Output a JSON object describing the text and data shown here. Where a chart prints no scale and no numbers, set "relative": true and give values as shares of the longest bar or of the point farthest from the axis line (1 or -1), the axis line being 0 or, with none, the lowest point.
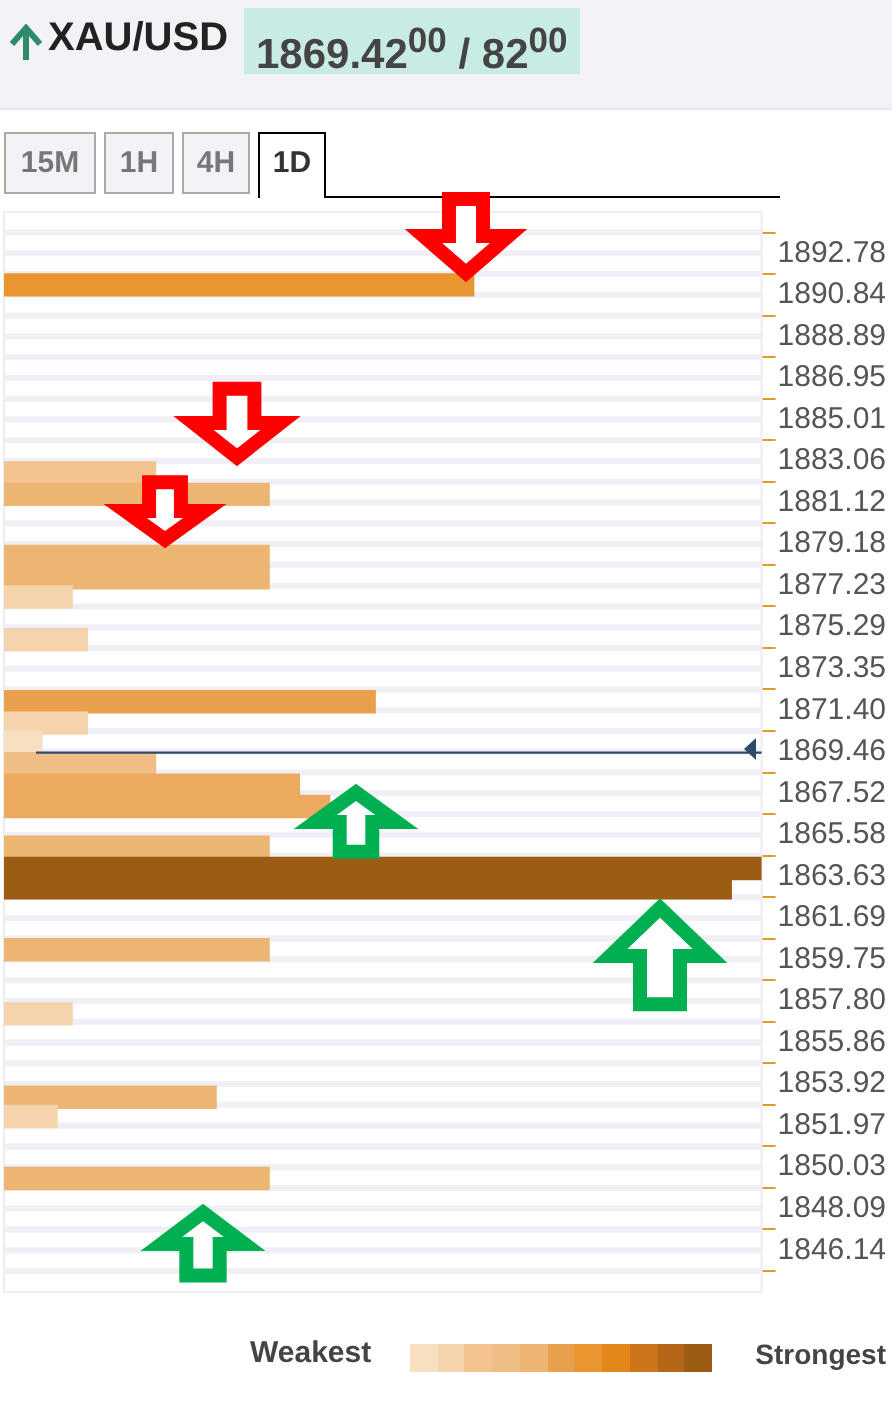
{
  "chart_data": {
    "type": "bar",
    "orientation": "horizontal",
    "relative": true,
    "title": "XAU/USD",
    "subtitle": "1869.42$^{00}$ / 82$^{00}$",
    "annotations": [
      "15M",
      "1H",
      "4H",
      "1D",
      "Weakest",
      "Strongest"
    ],
    "x": [
      1891.3,
      1882.5,
      1881.5,
      1878.6,
      1877.6,
      1876.7,
      1874.7,
      1871.8,
      1870.8,
      1869.9,
      1868.9,
      1867.9,
      1866.9,
      1865.0,
      1864.0,
      1863.1,
      1860.2,
      1857.2,
      1853.3,
      1852.4,
      1849.5
    ],
    "values": [
      0.62,
      0.2,
      0.35,
      0.35,
      0.35,
      0.09,
      0.11,
      0.49,
      0.11,
      0.05,
      0.2,
      0.39,
      0.43,
      0.35,
      1,
      0.96,
      0.35,
      0.09,
      0.28,
      0.07,
      0.35
    ],
    "colors": [
      "#e8962f",
      "#f2c38f",
      "#edb572",
      "#edb572",
      "#edb572",
      "#f5d3ad",
      "#f5d3ad",
      "#e9a04c",
      "#f5d3ad",
      "#f8dfc2",
      "#f0bd84",
      "#ebaa5f",
      "#ebaa5f",
      "#edb572",
      "#9c5c14",
      "#9c5c14",
      "#edb572",
      "#f5d3ad",
      "#edb572",
      "#f5d3ad",
      "#edb572"
    ],
    "ylim": [
      1845.2,
      1893.7
    ],
    "yticks": [
      1892.78,
      1890.84,
      1888.89,
      1886.95,
      1885.01,
      1883.06,
      1881.12,
      1879.18,
      1877.23,
      1875.29,
      1873.35,
      {
        "value": 1871.4,
        "label": "1871.40"
      },
      1869.46,
      1867.52,
      1865.58,
      1863.63,
      1861.69,
      1859.75,
      {
        "value": 1857.8,
        "label": "1857.80"
      },
      1855.86,
      1853.92,
      1851.97,
      1850.03,
      1848.09,
      1846.14
    ],
    "ref_lines": [
      {
        "axis": "y",
        "value": 1869.42,
        "color": "#2d4a6e"
      }
    ],
    "grid": true
  }
}
